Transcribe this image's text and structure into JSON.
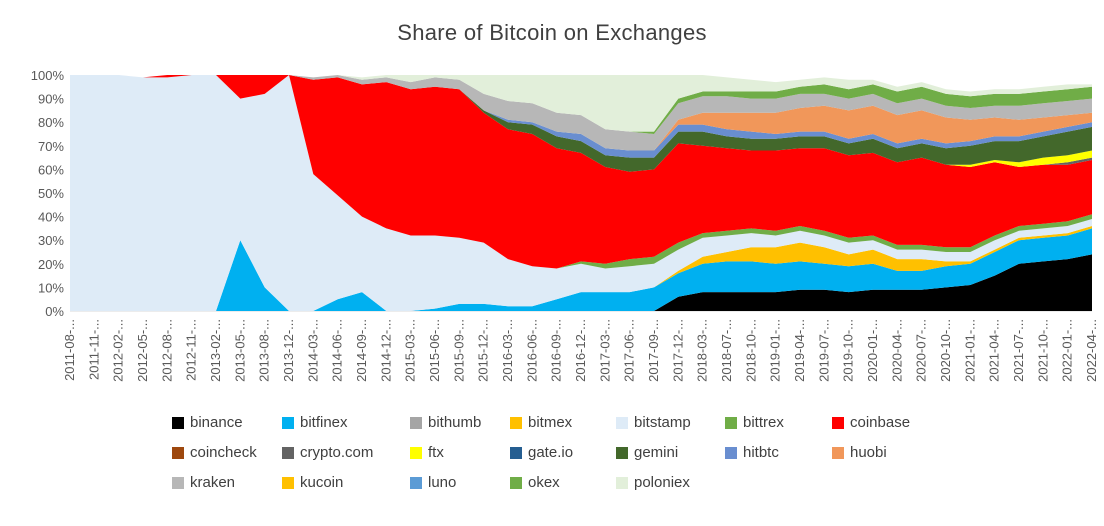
{
  "chart_data": {
    "type": "area",
    "title": "Share of Bitcoin on Exchanges",
    "xlabel": "",
    "ylabel": "",
    "ylim": [
      0,
      100
    ],
    "stacked": true,
    "y_ticks": [
      "0%",
      "10%",
      "20%",
      "30%",
      "40%",
      "50%",
      "60%",
      "70%",
      "80%",
      "90%",
      "100%"
    ],
    "x_ticks": [
      "2011-08-...",
      "2011-11-...",
      "2012-02-...",
      "2012-05-...",
      "2012-08-...",
      "2012-11-...",
      "2013-02-...",
      "2013-05-...",
      "2013-08-...",
      "2013-12-...",
      "2014-03-...",
      "2014-06-...",
      "2014-09-...",
      "2014-12-...",
      "2015-03-...",
      "2015-06-...",
      "2015-09-...",
      "2015-12-...",
      "2016-03-...",
      "2016-06-...",
      "2016-09-...",
      "2016-12-...",
      "2017-03-...",
      "2017-06-...",
      "2017-09-...",
      "2017-12-...",
      "2018-03-...",
      "2018-07-...",
      "2018-10-...",
      "2019-01-...",
      "2019-04-...",
      "2019-07-...",
      "2019-10-...",
      "2020-01-...",
      "2020-04-...",
      "2020-07-...",
      "2020-10-...",
      "2021-01-...",
      "2021-04-...",
      "2021-07-...",
      "2021-10-...",
      "2022-01-...",
      "2022-04-..."
    ],
    "legend_position": "bottom",
    "series": [
      {
        "name": "binance",
        "color": "#000000",
        "values": [
          0,
          0,
          0,
          0,
          0,
          0,
          0,
          0,
          0,
          0,
          0,
          0,
          0,
          0,
          0,
          0,
          0,
          0,
          0,
          0,
          0,
          0,
          0,
          0,
          0,
          6,
          8,
          8,
          8,
          8,
          9,
          9,
          8,
          9,
          9,
          9,
          10,
          11,
          15,
          20,
          21,
          22,
          24
        ]
      },
      {
        "name": "bitfinex",
        "color": "#00b0f0",
        "values": [
          0,
          0,
          0,
          0,
          0,
          0,
          0,
          30,
          10,
          0,
          0,
          5,
          8,
          0,
          0,
          1,
          3,
          3,
          2,
          2,
          5,
          8,
          8,
          8,
          10,
          10,
          12,
          13,
          13,
          12,
          12,
          11,
          11,
          11,
          8,
          8,
          9,
          9,
          10,
          10,
          10,
          10,
          11
        ]
      },
      {
        "name": "bithumb",
        "color": "#a5a5a5",
        "values": [
          0,
          0,
          0,
          0,
          0,
          0,
          0,
          0,
          0,
          0,
          0,
          0,
          0,
          0,
          0,
          0,
          0,
          0,
          0,
          0,
          0,
          0,
          0,
          0,
          0,
          0,
          0,
          0,
          0,
          0,
          0,
          0,
          0,
          0,
          0,
          0,
          0,
          0,
          0,
          0,
          0,
          0,
          0
        ]
      },
      {
        "name": "bitmex",
        "color": "#ffc000",
        "values": [
          0,
          0,
          0,
          0,
          0,
          0,
          0,
          0,
          0,
          0,
          0,
          0,
          0,
          0,
          0,
          0,
          0,
          0,
          0,
          0,
          0,
          0,
          0,
          0,
          0,
          1,
          3,
          4,
          6,
          7,
          8,
          7,
          5,
          6,
          5,
          5,
          2,
          1,
          1,
          1,
          1,
          1,
          1
        ]
      },
      {
        "name": "bitstamp",
        "color": "#deebf7",
        "values": [
          100,
          100,
          100,
          99,
          99,
          100,
          100,
          60,
          82,
          100,
          58,
          44,
          32,
          35,
          32,
          31,
          28,
          26,
          20,
          17,
          13,
          12,
          10,
          11,
          10,
          9,
          8,
          7,
          6,
          5,
          5,
          5,
          5,
          4,
          4,
          4,
          4,
          4,
          4,
          3,
          3,
          3,
          3
        ]
      },
      {
        "name": "bittrex",
        "color": "#70ad47",
        "values": [
          0,
          0,
          0,
          0,
          0,
          0,
          0,
          0,
          0,
          0,
          0,
          0,
          0,
          0,
          0,
          0,
          0,
          0,
          0,
          0,
          0,
          1,
          2,
          3,
          3,
          3,
          2,
          2,
          2,
          2,
          2,
          2,
          2,
          2,
          2,
          2,
          2,
          2,
          2,
          2,
          2,
          2,
          2
        ]
      },
      {
        "name": "coinbase",
        "color": "#ff0000",
        "values": [
          0,
          0,
          0,
          0,
          1,
          0,
          0,
          10,
          8,
          0,
          40,
          50,
          56,
          62,
          62,
          63,
          63,
          55,
          55,
          56,
          51,
          46,
          41,
          37,
          37,
          42,
          37,
          35,
          33,
          34,
          33,
          35,
          35,
          35,
          35,
          37,
          35,
          34,
          31,
          25,
          25,
          24,
          23
        ]
      },
      {
        "name": "coincheck",
        "color": "#9e480e",
        "values": [
          0,
          0,
          0,
          0,
          0,
          0,
          0,
          0,
          0,
          0,
          0,
          0,
          0,
          0,
          0,
          0,
          0,
          0,
          0,
          0,
          0,
          0,
          0,
          0,
          0,
          0,
          0,
          0,
          0,
          0,
          0,
          0,
          0,
          0,
          0,
          0,
          0,
          0,
          0,
          0,
          0,
          0,
          0
        ]
      },
      {
        "name": "crypto.com",
        "color": "#636363",
        "values": [
          0,
          0,
          0,
          0,
          0,
          0,
          0,
          0,
          0,
          0,
          0,
          0,
          0,
          0,
          0,
          0,
          0,
          0,
          0,
          0,
          0,
          0,
          0,
          0,
          0,
          0,
          0,
          0,
          0,
          0,
          0,
          0,
          0,
          0,
          0,
          0,
          0,
          0,
          0,
          0,
          0,
          1,
          1
        ]
      },
      {
        "name": "ftx",
        "color": "#ffff00",
        "values": [
          0,
          0,
          0,
          0,
          0,
          0,
          0,
          0,
          0,
          0,
          0,
          0,
          0,
          0,
          0,
          0,
          0,
          0,
          0,
          0,
          0,
          0,
          0,
          0,
          0,
          0,
          0,
          0,
          0,
          0,
          0,
          0,
          0,
          0,
          0,
          0,
          0,
          1,
          1,
          2,
          3,
          3,
          3
        ]
      },
      {
        "name": "gate.io",
        "color": "#255e91",
        "values": [
          0,
          0,
          0,
          0,
          0,
          0,
          0,
          0,
          0,
          0,
          0,
          0,
          0,
          0,
          0,
          0,
          0,
          0,
          0,
          0,
          0,
          0,
          0,
          0,
          0,
          0,
          0,
          0,
          0,
          0,
          0,
          0,
          0,
          0,
          0,
          0,
          0,
          0,
          0,
          0,
          0,
          0,
          0
        ]
      },
      {
        "name": "gemini",
        "color": "#43682b",
        "values": [
          0,
          0,
          0,
          0,
          0,
          0,
          0,
          0,
          0,
          0,
          0,
          0,
          0,
          0,
          0,
          0,
          0,
          1,
          3,
          4,
          5,
          5,
          5,
          6,
          5,
          5,
          6,
          5,
          5,
          5,
          5,
          5,
          5,
          6,
          6,
          6,
          7,
          8,
          8,
          9,
          9,
          10,
          10
        ]
      },
      {
        "name": "hitbtc",
        "color": "#698ed0",
        "values": [
          0,
          0,
          0,
          0,
          0,
          0,
          0,
          0,
          0,
          0,
          0,
          0,
          0,
          0,
          0,
          0,
          0,
          0,
          1,
          1,
          2,
          3,
          3,
          3,
          3,
          3,
          3,
          3,
          3,
          2,
          2,
          2,
          2,
          2,
          2,
          2,
          2,
          2,
          2,
          2,
          2,
          2,
          2
        ]
      },
      {
        "name": "huobi",
        "color": "#f1975a",
        "values": [
          0,
          0,
          0,
          0,
          0,
          0,
          0,
          0,
          0,
          0,
          0,
          0,
          0,
          0,
          0,
          0,
          0,
          0,
          0,
          0,
          0,
          0,
          0,
          0,
          0,
          2,
          5,
          7,
          8,
          9,
          10,
          11,
          12,
          12,
          12,
          12,
          11,
          9,
          8,
          7,
          6,
          5,
          4
        ]
      },
      {
        "name": "kraken",
        "color": "#b7b7b7",
        "values": [
          0,
          0,
          0,
          0,
          0,
          0,
          0,
          0,
          1,
          0,
          1,
          2,
          2,
          2,
          3,
          4,
          4,
          7,
          8,
          8,
          8,
          8,
          8,
          8,
          7,
          7,
          7,
          7,
          6,
          6,
          6,
          5,
          5,
          5,
          5,
          5,
          5,
          5,
          5,
          6,
          6,
          6,
          6
        ]
      },
      {
        "name": "kucoin",
        "color": "#ffc000",
        "values": [
          0,
          0,
          0,
          0,
          0,
          0,
          0,
          0,
          0,
          0,
          0,
          0,
          0,
          0,
          0,
          0,
          0,
          0,
          0,
          0,
          0,
          0,
          0,
          0,
          0,
          0,
          0,
          0,
          0,
          0,
          0,
          0,
          0,
          0,
          0,
          0,
          0,
          0,
          0,
          0,
          0,
          0,
          0
        ]
      },
      {
        "name": "luno",
        "color": "#5b9bd5",
        "values": [
          0,
          0,
          0,
          0,
          0,
          0,
          0,
          0,
          0,
          0,
          0,
          0,
          0,
          0,
          0,
          0,
          0,
          0,
          0,
          0,
          0,
          0,
          0,
          0,
          0,
          0,
          0,
          0,
          0,
          0,
          0,
          0,
          0,
          0,
          0,
          0,
          0,
          0,
          0,
          0,
          0,
          0,
          0
        ]
      },
      {
        "name": "okex",
        "color": "#70ad47",
        "values": [
          0,
          0,
          0,
          0,
          0,
          0,
          0,
          0,
          0,
          0,
          0,
          0,
          0,
          0,
          0,
          0,
          0,
          0,
          0,
          0,
          0,
          0,
          0,
          0,
          1,
          2,
          2,
          2,
          3,
          3,
          3,
          4,
          4,
          4,
          5,
          5,
          5,
          5,
          5,
          5,
          5,
          5,
          5
        ]
      },
      {
        "name": "poloniex",
        "color": "#e2efda",
        "values": [
          0,
          0,
          0,
          0,
          0,
          0,
          0,
          0,
          0,
          0,
          0,
          1,
          1,
          1,
          3,
          1,
          2,
          8,
          11,
          12,
          16,
          17,
          23,
          24,
          24,
          12,
          7,
          6,
          5,
          4,
          3,
          3,
          4,
          2,
          2,
          2,
          2,
          2,
          2,
          2,
          2,
          2,
          1
        ]
      }
    ]
  }
}
